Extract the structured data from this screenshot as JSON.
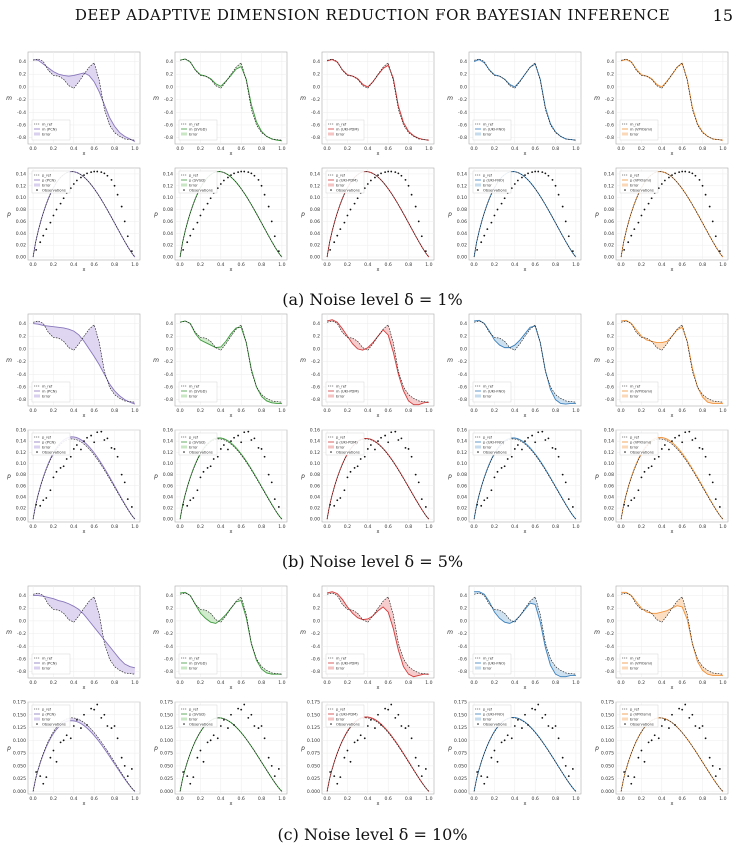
{
  "header": {
    "title": "DEEP ADAPTIVE DIMENSION REDUCTION FOR BAYESIAN INFERENCE",
    "page_number": "15"
  },
  "captions": [
    "(a) Noise level δ = 1%",
    "(b) Noise level δ = 5%",
    "(c) Noise level δ = 10%"
  ],
  "methods": [
    {
      "name": "PCN",
      "color": "#8877bb",
      "fill": "#d9cfee"
    },
    {
      "name": "SVGD",
      "color": "#3d9a3d",
      "fill": "#c9e7c4"
    },
    {
      "name": "UKI-PDM",
      "color": "#d23a3a",
      "fill": "#f6c3c3"
    },
    {
      "name": "UKI-FNO",
      "color": "#3b80bb",
      "fill": "#c6dcee"
    },
    {
      "name": "VPIOsmi",
      "color": "#f0923a",
      "fill": "#fbd8b8"
    }
  ],
  "chart_data": {
    "type": "line",
    "layout_note": "3 noise levels x (5 m-panels + 5 p-panels)",
    "m_panels": {
      "xlabel": "x",
      "ylabel": "m",
      "xlim": [
        0,
        1.0
      ],
      "ylim": [
        -0.9,
        0.5
      ],
      "xticks": [
        "0.0",
        "0.2",
        "0.4",
        "0.6",
        "0.8",
        "1.0"
      ],
      "yticks": [
        "0.4",
        "0.2",
        "0.0",
        "-0.2",
        "-0.4",
        "-0.6",
        "-0.8"
      ],
      "legend": [
        "m_ref",
        "m (METHOD)",
        "Error"
      ],
      "reference_curve": {
        "x": [
          0.0,
          0.05,
          0.1,
          0.15,
          0.2,
          0.25,
          0.3,
          0.35,
          0.4,
          0.45,
          0.5,
          0.55,
          0.6,
          0.65,
          0.7,
          0.75,
          0.8,
          0.85,
          0.9,
          0.95,
          1.0
        ],
        "y": [
          0.42,
          0.44,
          0.4,
          0.26,
          0.18,
          0.17,
          0.12,
          0.02,
          -0.02,
          0.08,
          0.2,
          0.31,
          0.38,
          0.1,
          -0.35,
          -0.6,
          -0.72,
          -0.78,
          -0.82,
          -0.83,
          -0.84
        ]
      },
      "estimates": {
        "delta_1": {
          "PCN": [
            0.43,
            0.42,
            0.36,
            0.3,
            0.24,
            0.2,
            0.18,
            0.17,
            0.18,
            0.2,
            0.22,
            0.18,
            0.08,
            -0.08,
            -0.28,
            -0.48,
            -0.62,
            -0.72,
            -0.78,
            -0.82,
            -0.86
          ],
          "SVGD": [
            0.42,
            0.44,
            0.39,
            0.27,
            0.19,
            0.17,
            0.13,
            0.05,
            0.01,
            0.09,
            0.18,
            0.28,
            0.32,
            0.12,
            -0.28,
            -0.55,
            -0.7,
            -0.78,
            -0.82,
            -0.84,
            -0.85
          ],
          "UKI-PDM": [
            0.41,
            0.43,
            0.39,
            0.27,
            0.19,
            0.17,
            0.13,
            0.04,
            0.0,
            0.08,
            0.19,
            0.29,
            0.34,
            0.14,
            -0.3,
            -0.56,
            -0.7,
            -0.77,
            -0.81,
            -0.83,
            -0.84
          ],
          "UKI-FNO": [
            0.4,
            0.43,
            0.38,
            0.27,
            0.19,
            0.17,
            0.12,
            0.04,
            0.0,
            0.09,
            0.2,
            0.31,
            0.36,
            0.12,
            -0.32,
            -0.58,
            -0.71,
            -0.78,
            -0.82,
            -0.83,
            -0.84
          ],
          "VPIOsmi": [
            0.41,
            0.43,
            0.39,
            0.28,
            0.19,
            0.17,
            0.13,
            0.04,
            0.0,
            0.09,
            0.19,
            0.31,
            0.37,
            0.12,
            -0.32,
            -0.58,
            -0.71,
            -0.78,
            -0.82,
            -0.83,
            -0.84
          ]
        },
        "delta_5": {
          "PCN": [
            0.4,
            0.39,
            0.37,
            0.36,
            0.35,
            0.34,
            0.33,
            0.31,
            0.28,
            0.22,
            0.12,
            0.0,
            -0.12,
            -0.25,
            -0.4,
            -0.55,
            -0.66,
            -0.74,
            -0.8,
            -0.84,
            -0.87
          ],
          "SVGD": [
            0.42,
            0.44,
            0.4,
            0.24,
            0.14,
            0.1,
            0.06,
            0.02,
            0.03,
            0.12,
            0.24,
            0.33,
            0.34,
            0.1,
            -0.32,
            -0.6,
            -0.75,
            -0.82,
            -0.85,
            -0.86,
            -0.86
          ],
          "UKI-PDM": [
            0.44,
            0.46,
            0.42,
            0.32,
            0.2,
            0.08,
            0.0,
            -0.02,
            0.02,
            0.1,
            0.2,
            0.3,
            0.22,
            -0.05,
            -0.4,
            -0.66,
            -0.82,
            -0.88,
            -0.88,
            -0.85,
            -0.84
          ],
          "UKI-FNO": [
            0.44,
            0.45,
            0.4,
            0.28,
            0.14,
            0.06,
            0.02,
            0.02,
            0.06,
            0.14,
            0.24,
            0.34,
            0.36,
            0.1,
            -0.34,
            -0.64,
            -0.8,
            -0.86,
            -0.87,
            -0.86,
            -0.86
          ],
          "VPIOsmi": [
            0.44,
            0.45,
            0.4,
            0.3,
            0.2,
            0.14,
            0.12,
            0.1,
            0.1,
            0.12,
            0.2,
            0.3,
            0.34,
            0.12,
            -0.3,
            -0.6,
            -0.76,
            -0.84,
            -0.86,
            -0.86,
            -0.86
          ]
        },
        "delta_10": {
          "PCN": [
            0.4,
            0.4,
            0.39,
            0.37,
            0.35,
            0.32,
            0.3,
            0.27,
            0.23,
            0.18,
            0.1,
            0.0,
            -0.1,
            -0.2,
            -0.3,
            -0.4,
            -0.5,
            -0.6,
            -0.68,
            -0.72,
            -0.74
          ],
          "SVGD": [
            0.44,
            0.45,
            0.4,
            0.26,
            0.12,
            0.04,
            -0.02,
            -0.04,
            0.02,
            0.1,
            0.2,
            0.3,
            0.32,
            0.05,
            -0.36,
            -0.62,
            -0.76,
            -0.82,
            -0.84,
            -0.84,
            -0.84
          ],
          "UKI-PDM": [
            0.44,
            0.46,
            0.43,
            0.34,
            0.22,
            0.12,
            0.05,
            0.02,
            0.03,
            0.08,
            0.16,
            0.22,
            0.14,
            -0.12,
            -0.46,
            -0.72,
            -0.84,
            -0.88,
            -0.86,
            -0.84,
            -0.84
          ],
          "UKI-FNO": [
            0.46,
            0.46,
            0.42,
            0.3,
            0.14,
            0.04,
            -0.02,
            -0.04,
            0.0,
            0.08,
            0.18,
            0.28,
            0.26,
            -0.02,
            -0.42,
            -0.7,
            -0.84,
            -0.88,
            -0.88,
            -0.86,
            -0.86
          ],
          "VPIOsmi": [
            0.45,
            0.45,
            0.4,
            0.3,
            0.2,
            0.14,
            0.12,
            0.12,
            0.14,
            0.16,
            0.2,
            0.24,
            0.22,
            0.02,
            -0.36,
            -0.64,
            -0.78,
            -0.84,
            -0.86,
            -0.86,
            -0.86
          ]
        }
      }
    },
    "p_panels": {
      "xlabel": "x",
      "ylabel": "p",
      "xticks": [
        "0.0",
        "0.2",
        "0.4",
        "0.6",
        "0.8",
        "1.0"
      ],
      "legend": [
        "p_ref",
        "p (METHOD)",
        "Error",
        "Observations"
      ],
      "ylim_by_noise": {
        "delta_1": [
          0,
          0.15
        ],
        "delta_5": [
          0,
          0.16
        ],
        "delta_10": [
          0,
          0.175
        ]
      },
      "yticks_by_noise": {
        "delta_1": [
          "0.00",
          "0.02",
          "0.04",
          "0.06",
          "0.08",
          "0.10",
          "0.12",
          "0.14"
        ],
        "delta_5": [
          "0.00",
          "0.02",
          "0.04",
          "0.06",
          "0.08",
          "0.10",
          "0.12",
          "0.14",
          "0.16"
        ],
        "delta_10": [
          "0.000",
          "0.025",
          "0.050",
          "0.075",
          "0.100",
          "0.125",
          "0.150",
          "0.175"
        ]
      },
      "obs_x": [
        0.03,
        0.07,
        0.1,
        0.13,
        0.17,
        0.2,
        0.23,
        0.27,
        0.3,
        0.33,
        0.37,
        0.4,
        0.43,
        0.47,
        0.5,
        0.53,
        0.57,
        0.6,
        0.63,
        0.67,
        0.7,
        0.73,
        0.77,
        0.8,
        0.83,
        0.87,
        0.9,
        0.93,
        0.97
      ],
      "observations": {
        "delta_1": [
          0.012,
          0.025,
          0.036,
          0.047,
          0.058,
          0.07,
          0.08,
          0.09,
          0.099,
          0.108,
          0.116,
          0.123,
          0.129,
          0.134,
          0.138,
          0.141,
          0.143,
          0.144,
          0.144,
          0.143,
          0.141,
          0.137,
          0.13,
          0.12,
          0.105,
          0.085,
          0.06,
          0.035,
          0.01
        ],
        "delta_5": [
          0.026,
          0.024,
          0.034,
          0.038,
          0.052,
          0.075,
          0.085,
          0.092,
          0.095,
          0.108,
          0.112,
          0.126,
          0.133,
          0.125,
          0.14,
          0.146,
          0.15,
          0.138,
          0.156,
          0.157,
          0.142,
          0.145,
          0.128,
          0.126,
          0.112,
          0.08,
          0.066,
          0.036,
          0.022
        ],
        "delta_10": [
          0.038,
          0.03,
          0.015,
          0.028,
          0.066,
          0.08,
          0.058,
          0.096,
          0.1,
          0.11,
          0.104,
          0.128,
          0.14,
          0.124,
          0.15,
          0.13,
          0.162,
          0.16,
          0.17,
          0.144,
          0.15,
          0.128,
          0.124,
          0.128,
          0.104,
          0.066,
          0.05,
          0.03,
          0.044
        ]
      }
    }
  }
}
